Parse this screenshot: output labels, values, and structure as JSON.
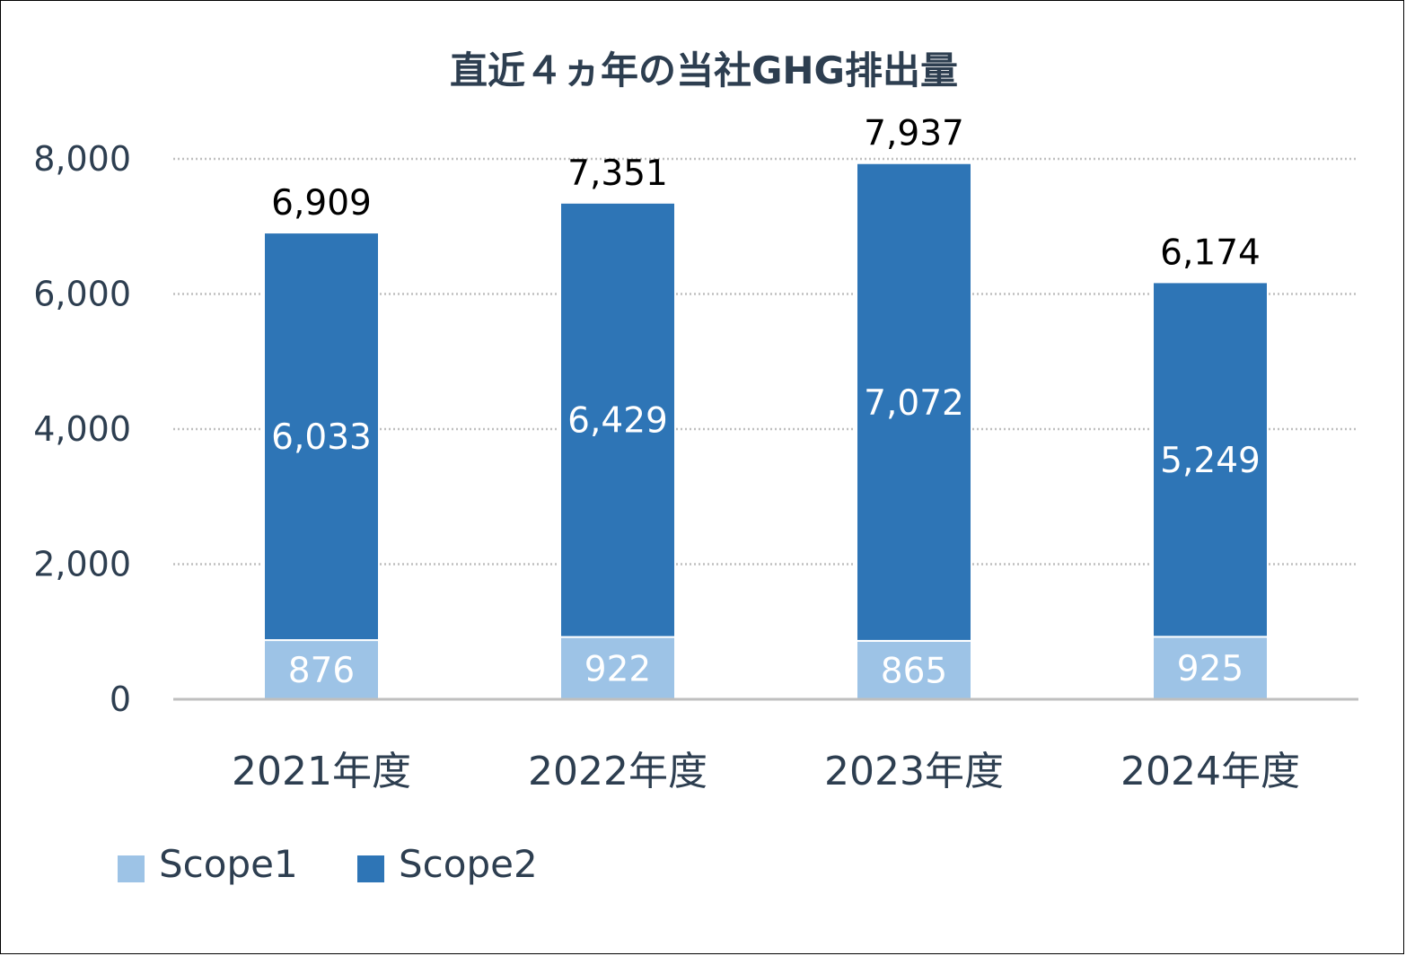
{
  "chart_data": {
    "type": "bar",
    "stacked": true,
    "title": "直近４ヵ年の当社GHG排出量",
    "categories": [
      "2021年度",
      "2022年度",
      "2023年度",
      "2024年度"
    ],
    "series": [
      {
        "name": "Scope1",
        "values": [
          876,
          922,
          865,
          925
        ],
        "color": "#9dc3e6"
      },
      {
        "name": "Scope2",
        "values": [
          6033,
          6429,
          7072,
          5249
        ],
        "color": "#2e75b6"
      }
    ],
    "totals": [
      6909,
      7351,
      7937,
      6174
    ],
    "ylim": [
      0,
      8000
    ],
    "yticks": [
      0,
      2000,
      4000,
      6000,
      8000
    ],
    "ytick_labels": [
      "0",
      "2,000",
      "4,000",
      "6,000",
      "8,000"
    ],
    "xlabel": "",
    "ylabel": "",
    "grid": true,
    "legend_position": "bottom-left"
  }
}
